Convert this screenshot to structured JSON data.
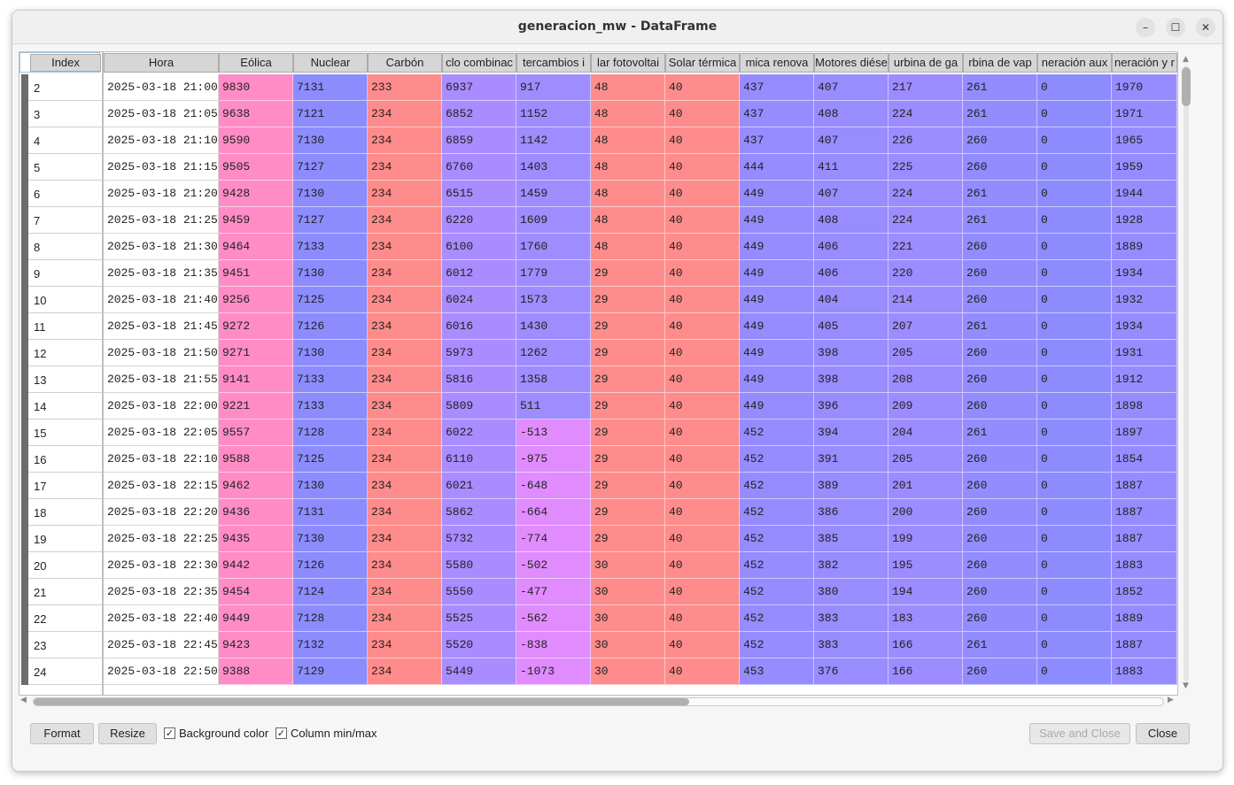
{
  "window": {
    "title": "generacion_mw - DataFrame",
    "min_label": "–",
    "max_label": "☐",
    "close_label": "✕"
  },
  "table": {
    "index_header": "Index",
    "headers": [
      "Hora",
      "Eólica",
      "Nuclear",
      "Carbón",
      "clo combinac",
      "tercambios i",
      "lar fotovoltai",
      "Solar térmica",
      "mica renova",
      "Motores diése",
      "urbina de ga",
      "rbina de vap",
      "neración aux",
      "neración y r"
    ],
    "column_colors": [
      "#ffffff",
      "#ff8cc6",
      "#8c8cff",
      "#ff8c8c",
      "#a98cff",
      "#9f8cff",
      "#ff8c8c",
      "#ff8c8c",
      "#968cff",
      "#988cff",
      "#9c8cff",
      "#928cff",
      "#8c8cff",
      "#978cff"
    ],
    "rows": [
      {
        "index": "2",
        "values": [
          "2025-03-18 21:00",
          "9830",
          "7131",
          "233",
          "6937",
          "917",
          "48",
          "40",
          "437",
          "407",
          "217",
          "261",
          "0",
          "1970"
        ]
      },
      {
        "index": "3",
        "values": [
          "2025-03-18 21:05",
          "9638",
          "7121",
          "234",
          "6852",
          "1152",
          "48",
          "40",
          "437",
          "408",
          "224",
          "261",
          "0",
          "1971"
        ]
      },
      {
        "index": "4",
        "values": [
          "2025-03-18 21:10",
          "9590",
          "7130",
          "234",
          "6859",
          "1142",
          "48",
          "40",
          "437",
          "407",
          "226",
          "260",
          "0",
          "1965"
        ]
      },
      {
        "index": "5",
        "values": [
          "2025-03-18 21:15",
          "9505",
          "7127",
          "234",
          "6760",
          "1403",
          "48",
          "40",
          "444",
          "411",
          "225",
          "260",
          "0",
          "1959"
        ]
      },
      {
        "index": "6",
        "values": [
          "2025-03-18 21:20",
          "9428",
          "7130",
          "234",
          "6515",
          "1459",
          "48",
          "40",
          "449",
          "407",
          "224",
          "261",
          "0",
          "1944"
        ]
      },
      {
        "index": "7",
        "values": [
          "2025-03-18 21:25",
          "9459",
          "7127",
          "234",
          "6220",
          "1609",
          "48",
          "40",
          "449",
          "408",
          "224",
          "261",
          "0",
          "1928"
        ]
      },
      {
        "index": "8",
        "values": [
          "2025-03-18 21:30",
          "9464",
          "7133",
          "234",
          "6100",
          "1760",
          "48",
          "40",
          "449",
          "406",
          "221",
          "260",
          "0",
          "1889"
        ]
      },
      {
        "index": "9",
        "values": [
          "2025-03-18 21:35",
          "9451",
          "7130",
          "234",
          "6012",
          "1779",
          "29",
          "40",
          "449",
          "406",
          "220",
          "260",
          "0",
          "1934"
        ]
      },
      {
        "index": "10",
        "values": [
          "2025-03-18 21:40",
          "9256",
          "7125",
          "234",
          "6024",
          "1573",
          "29",
          "40",
          "449",
          "404",
          "214",
          "260",
          "0",
          "1932"
        ]
      },
      {
        "index": "11",
        "values": [
          "2025-03-18 21:45",
          "9272",
          "7126",
          "234",
          "6016",
          "1430",
          "29",
          "40",
          "449",
          "405",
          "207",
          "261",
          "0",
          "1934"
        ]
      },
      {
        "index": "12",
        "values": [
          "2025-03-18 21:50",
          "9271",
          "7130",
          "234",
          "5973",
          "1262",
          "29",
          "40",
          "449",
          "398",
          "205",
          "260",
          "0",
          "1931"
        ]
      },
      {
        "index": "13",
        "values": [
          "2025-03-18 21:55",
          "9141",
          "7133",
          "234",
          "5816",
          "1358",
          "29",
          "40",
          "449",
          "398",
          "208",
          "260",
          "0",
          "1912"
        ]
      },
      {
        "index": "14",
        "values": [
          "2025-03-18 22:00",
          "9221",
          "7133",
          "234",
          "5809",
          "511",
          "29",
          "40",
          "449",
          "396",
          "209",
          "260",
          "0",
          "1898"
        ]
      },
      {
        "index": "15",
        "values": [
          "2025-03-18 22:05",
          "9557",
          "7128",
          "234",
          "6022",
          "-513",
          "29",
          "40",
          "452",
          "394",
          "204",
          "261",
          "0",
          "1897"
        ]
      },
      {
        "index": "16",
        "values": [
          "2025-03-18 22:10",
          "9588",
          "7125",
          "234",
          "6110",
          "-975",
          "29",
          "40",
          "452",
          "391",
          "205",
          "260",
          "0",
          "1854"
        ]
      },
      {
        "index": "17",
        "values": [
          "2025-03-18 22:15",
          "9462",
          "7130",
          "234",
          "6021",
          "-648",
          "29",
          "40",
          "452",
          "389",
          "201",
          "260",
          "0",
          "1887"
        ]
      },
      {
        "index": "18",
        "values": [
          "2025-03-18 22:20",
          "9436",
          "7131",
          "234",
          "5862",
          "-664",
          "29",
          "40",
          "452",
          "386",
          "200",
          "260",
          "0",
          "1887"
        ]
      },
      {
        "index": "19",
        "values": [
          "2025-03-18 22:25",
          "9435",
          "7130",
          "234",
          "5732",
          "-774",
          "29",
          "40",
          "452",
          "385",
          "199",
          "260",
          "0",
          "1887"
        ]
      },
      {
        "index": "20",
        "values": [
          "2025-03-18 22:30",
          "9442",
          "7126",
          "234",
          "5580",
          "-502",
          "30",
          "40",
          "452",
          "382",
          "195",
          "260",
          "0",
          "1883"
        ]
      },
      {
        "index": "21",
        "values": [
          "2025-03-18 22:35",
          "9454",
          "7124",
          "234",
          "5550",
          "-477",
          "30",
          "40",
          "452",
          "380",
          "194",
          "260",
          "0",
          "1852"
        ]
      },
      {
        "index": "22",
        "values": [
          "2025-03-18 22:40",
          "9449",
          "7128",
          "234",
          "5525",
          "-562",
          "30",
          "40",
          "452",
          "383",
          "183",
          "260",
          "0",
          "1889"
        ]
      },
      {
        "index": "23",
        "values": [
          "2025-03-18 22:45",
          "9423",
          "7132",
          "234",
          "5520",
          "-838",
          "30",
          "40",
          "452",
          "383",
          "166",
          "261",
          "0",
          "1887"
        ]
      },
      {
        "index": "24",
        "values": [
          "2025-03-18 22:50",
          "9388",
          "7129",
          "234",
          "5449",
          "-1073",
          "30",
          "40",
          "453",
          "376",
          "166",
          "260",
          "0",
          "1883"
        ]
      }
    ]
  },
  "buttons": {
    "format": "Format",
    "resize": "Resize",
    "save_close": "Save and Close",
    "close": "Close"
  },
  "checkboxes": {
    "background_color": {
      "label": "Background color",
      "checked": true
    },
    "column_minmax": {
      "label": "Column min/max",
      "checked": true
    }
  }
}
